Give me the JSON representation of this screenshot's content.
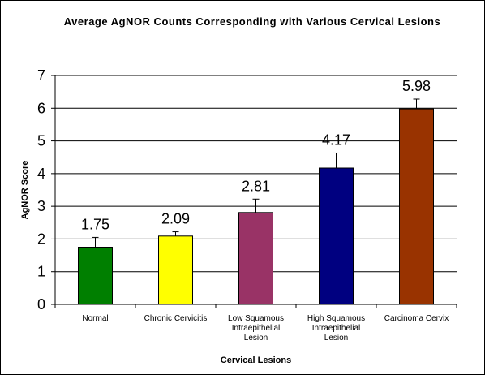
{
  "chart_data": {
    "type": "bar",
    "title": "Average AgNOR Counts Corresponding with Various Cervical Lesions",
    "xlabel": "Cervical Lesions",
    "ylabel": "AgNOR Score",
    "ylim": [
      0,
      7
    ],
    "yticks": [
      "0",
      "1",
      "2",
      "3",
      "4",
      "5",
      "6",
      "7"
    ],
    "grid": true,
    "categories": [
      [
        "Normal"
      ],
      [
        "Chronic Cervicitis"
      ],
      [
        "Low Squamous",
        "Intraepithelial",
        "Lesion"
      ],
      [
        "High Squamous",
        "Intraepithelial",
        "Lesion"
      ],
      [
        "Carcinoma Cervix"
      ]
    ],
    "values": [
      1.75,
      2.09,
      2.81,
      4.17,
      5.98
    ],
    "value_labels": [
      "1.75",
      "2.09",
      "2.81",
      "4.17",
      "5.98"
    ],
    "error_upper": [
      2.05,
      2.22,
      3.22,
      4.63,
      6.28
    ],
    "colors": [
      "#007f00",
      "#ffff00",
      "#993366",
      "#000080",
      "#993300"
    ]
  }
}
